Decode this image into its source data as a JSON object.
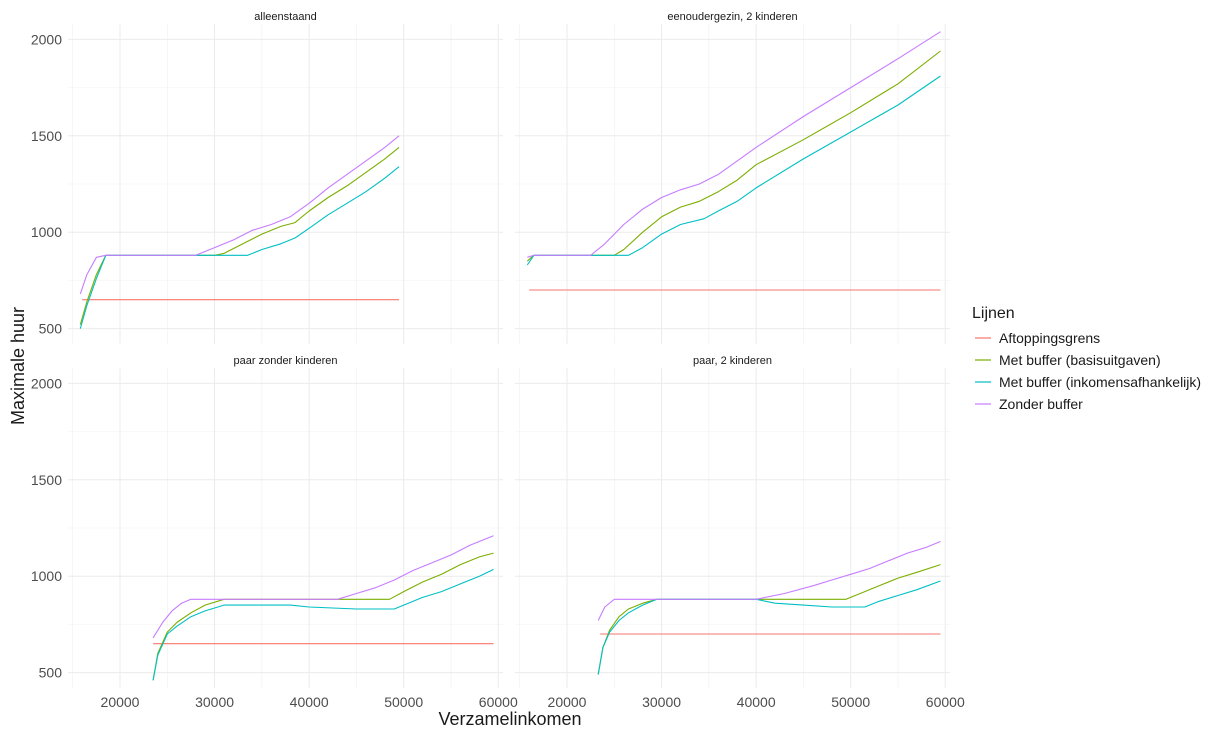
{
  "chart_data": {
    "type": "line",
    "xlabel": "Verzamelinkomen",
    "ylabel": "Maximale huur",
    "xlim": [
      14500,
      60500
    ],
    "ylim": [
      420,
      2080
    ],
    "x_ticks": [
      20000,
      30000,
      40000,
      50000,
      60000
    ],
    "y_ticks": [
      500,
      1000,
      1500,
      2000
    ],
    "grid": true,
    "legend": {
      "title": "Lijnen",
      "position": "right",
      "entries": [
        "Aftoppingsgrens",
        "Met buffer (basisuitgaven)",
        "Met buffer (inkomensafhankelijk)",
        "Zonder buffer"
      ]
    },
    "colors": {
      "Aftoppingsgrens": "#F8766D",
      "Met buffer (basisuitgaven)": "#7CAE00",
      "Met buffer (inkomensafhankelijk)": "#00BFC4",
      "Zonder buffer": "#C77CFF"
    },
    "panels": [
      {
        "title": "alleenstaand",
        "series": [
          {
            "name": "Aftoppingsgrens",
            "x": [
              16000,
              49500
            ],
            "y": [
              650,
              650
            ]
          },
          {
            "name": "Met buffer (basisuitgaven)",
            "x": [
              15800,
              16500,
              17500,
              18500,
              20000,
              25000,
              30000,
              31000,
              33000,
              35000,
              37000,
              38500,
              40000,
              42000,
              44000,
              46000,
              48000,
              49500
            ],
            "y": [
              520,
              640,
              780,
              880,
              880,
              880,
              880,
              890,
              940,
              990,
              1030,
              1050,
              1110,
              1180,
              1240,
              1310,
              1380,
              1440
            ]
          },
          {
            "name": "Met buffer (inkomensafhankelijk)",
            "x": [
              15800,
              16500,
              17500,
              18500,
              20000,
              25000,
              30000,
              33500,
              35000,
              37000,
              38500,
              40000,
              42000,
              44000,
              46000,
              48000,
              49500
            ],
            "y": [
              500,
              620,
              760,
              880,
              880,
              880,
              880,
              880,
              910,
              940,
              970,
              1020,
              1090,
              1150,
              1210,
              1280,
              1340
            ]
          },
          {
            "name": "Zonder buffer",
            "x": [
              15800,
              16500,
              17500,
              18500,
              20000,
              25000,
              28000,
              30000,
              32000,
              34000,
              36000,
              38000,
              40000,
              42000,
              44000,
              46000,
              48000,
              49500
            ],
            "y": [
              680,
              780,
              870,
              880,
              880,
              880,
              880,
              920,
              960,
              1010,
              1040,
              1080,
              1150,
              1230,
              1300,
              1370,
              1440,
              1500
            ]
          }
        ]
      },
      {
        "title": "eenoudergezin, 2 kinderen",
        "series": [
          {
            "name": "Aftoppingsgrens",
            "x": [
              16000,
              59500
            ],
            "y": [
              700,
              700
            ]
          },
          {
            "name": "Met buffer (basisuitgaven)",
            "x": [
              15800,
              16500,
              18000,
              20000,
              24000,
              25000,
              26000,
              28000,
              30000,
              32000,
              34000,
              36000,
              38000,
              40000,
              45000,
              50000,
              55000,
              59500
            ],
            "y": [
              850,
              880,
              880,
              880,
              880,
              880,
              910,
              1000,
              1080,
              1130,
              1160,
              1210,
              1270,
              1350,
              1480,
              1620,
              1770,
              1940
            ]
          },
          {
            "name": "Met buffer (inkomensafhankelijk)",
            "x": [
              15800,
              16500,
              18000,
              20000,
              25000,
              26500,
              28000,
              30000,
              32000,
              34500,
              36000,
              38000,
              40000,
              45000,
              50000,
              55000,
              59500
            ],
            "y": [
              830,
              880,
              880,
              880,
              880,
              880,
              920,
              990,
              1040,
              1070,
              1110,
              1160,
              1230,
              1380,
              1520,
              1660,
              1810
            ]
          },
          {
            "name": "Zonder buffer",
            "x": [
              15800,
              16500,
              18000,
              20000,
              22500,
              24000,
              26000,
              28000,
              30000,
              32000,
              34000,
              36000,
              38000,
              40000,
              45000,
              50000,
              55000,
              59500
            ],
            "y": [
              870,
              880,
              880,
              880,
              880,
              940,
              1040,
              1120,
              1180,
              1220,
              1250,
              1300,
              1370,
              1440,
              1600,
              1750,
              1900,
              2040
            ]
          }
        ]
      },
      {
        "title": "paar zonder kinderen",
        "series": [
          {
            "name": "Aftoppingsgrens",
            "x": [
              23500,
              59500
            ],
            "y": [
              650,
              650
            ]
          },
          {
            "name": "Met buffer (basisuitgaven)",
            "x": [
              23500,
              24000,
              25000,
              26000,
              27500,
              29000,
              31000,
              35000,
              40000,
              45000,
              48500,
              50000,
              52000,
              54000,
              56000,
              58000,
              59500
            ],
            "y": [
              460,
              600,
              710,
              760,
              810,
              850,
              880,
              880,
              880,
              880,
              880,
              920,
              970,
              1010,
              1060,
              1100,
              1120
            ]
          },
          {
            "name": "Met buffer (inkomensafhankelijk)",
            "x": [
              23500,
              24000,
              25000,
              26000,
              27500,
              29000,
              31000,
              35000,
              38000,
              40000,
              45000,
              49000,
              50000,
              52000,
              54000,
              56000,
              58000,
              59500
            ],
            "y": [
              460,
              590,
              700,
              740,
              790,
              820,
              850,
              850,
              850,
              840,
              830,
              830,
              850,
              890,
              920,
              960,
              1000,
              1035
            ]
          },
          {
            "name": "Zonder buffer",
            "x": [
              23500,
              24500,
              25500,
              26500,
              27500,
              30000,
              35000,
              40000,
              43000,
              45000,
              47000,
              49000,
              51000,
              53000,
              55000,
              57000,
              59500
            ],
            "y": [
              680,
              760,
              820,
              860,
              880,
              880,
              880,
              880,
              880,
              910,
              940,
              980,
              1030,
              1070,
              1110,
              1160,
              1210
            ]
          }
        ]
      },
      {
        "title": "paar, 2 kinderen",
        "series": [
          {
            "name": "Aftoppingsgrens",
            "x": [
              23500,
              59500
            ],
            "y": [
              700,
              700
            ]
          },
          {
            "name": "Met buffer (basisuitgaven)",
            "x": [
              23300,
              23800,
              24500,
              25500,
              26500,
              28000,
              29500,
              35000,
              40000,
              45000,
              49500,
              51000,
              53000,
              55000,
              57000,
              59500
            ],
            "y": [
              490,
              630,
              720,
              790,
              830,
              860,
              880,
              880,
              880,
              880,
              880,
              910,
              950,
              990,
              1020,
              1060
            ]
          },
          {
            "name": "Met buffer (inkomensafhankelijk)",
            "x": [
              23300,
              23800,
              24500,
              25500,
              26500,
              28000,
              29500,
              35000,
              40000,
              42000,
              45000,
              48000,
              51500,
              53000,
              55000,
              57000,
              59500
            ],
            "y": [
              490,
              630,
              710,
              770,
              810,
              850,
              880,
              880,
              880,
              860,
              850,
              840,
              840,
              870,
              900,
              930,
              975
            ]
          },
          {
            "name": "Zonder buffer",
            "x": [
              23300,
              24000,
              25000,
              26000,
              30000,
              35000,
              40000,
              43000,
              46000,
              48000,
              50000,
              52000,
              54000,
              56000,
              58000,
              59500
            ],
            "y": [
              770,
              840,
              880,
              880,
              880,
              880,
              880,
              910,
              950,
              980,
              1010,
              1040,
              1080,
              1120,
              1150,
              1180
            ]
          }
        ]
      }
    ]
  }
}
